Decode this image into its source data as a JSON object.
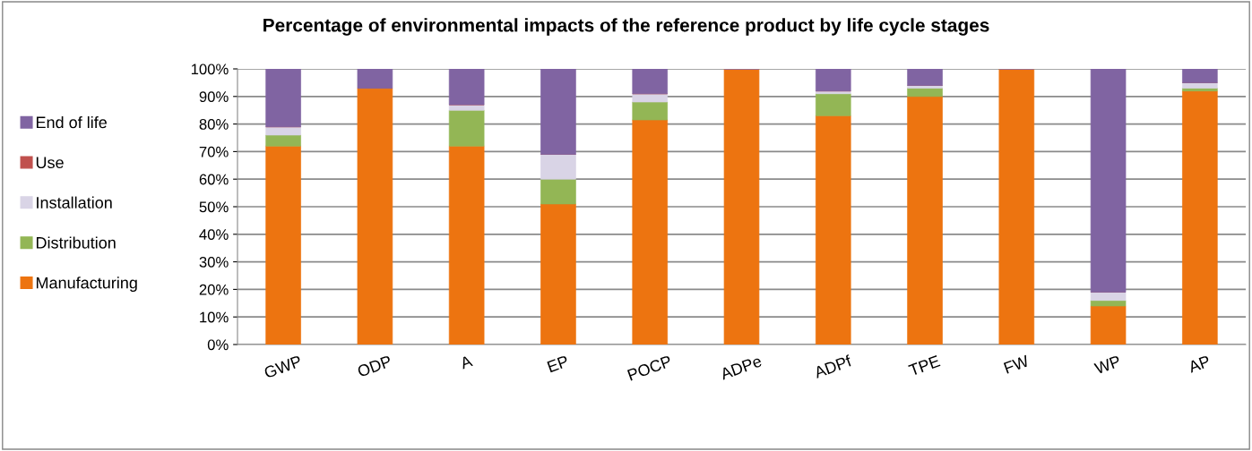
{
  "chart_data": {
    "type": "bar",
    "stacked": true,
    "title": "Percentage of environmental impacts of the reference product by life cycle stages",
    "categories": [
      "GWP",
      "ODP",
      "A",
      "EP",
      "POCP",
      "ADPe",
      "ADPf",
      "TPE",
      "FW",
      "WP",
      "AP"
    ],
    "series": [
      {
        "name": "Manufacturing",
        "color": "#ed7410",
        "values": [
          72,
          93,
          72,
          51,
          81.5,
          100,
          83,
          90,
          100,
          14,
          92
        ]
      },
      {
        "name": "Distribution",
        "color": "#93b655",
        "values": [
          4,
          0,
          13,
          9,
          6.5,
          0,
          8,
          3,
          0,
          2,
          1
        ]
      },
      {
        "name": "Installation",
        "color": "#d9d4e6",
        "values": [
          3,
          0,
          2,
          9,
          3,
          0,
          1,
          1,
          0,
          3,
          2
        ]
      },
      {
        "name": "Use",
        "color": "#c0504d",
        "values": [
          0,
          0,
          0,
          0,
          0,
          0,
          0,
          0,
          0,
          0,
          0
        ]
      },
      {
        "name": "End of life",
        "color": "#8064a2",
        "values": [
          21,
          7,
          13,
          31,
          9,
          0,
          8,
          6,
          0,
          81,
          5
        ]
      }
    ],
    "ylim": [
      0,
      100
    ],
    "yticks": [
      {
        "value": 0,
        "label": "0%"
      },
      {
        "value": 10,
        "label": "10%"
      },
      {
        "value": 20,
        "label": "20%"
      },
      {
        "value": 30,
        "label": "30%"
      },
      {
        "value": 40,
        "label": "40%"
      },
      {
        "value": 50,
        "label": "50%"
      },
      {
        "value": 60,
        "label": "60%"
      },
      {
        "value": 70,
        "label": "70%"
      },
      {
        "value": 80,
        "label": "80%"
      },
      {
        "value": 90,
        "label": "90%"
      },
      {
        "value": 100,
        "label": "100%"
      }
    ],
    "grid": "y",
    "legend": "left"
  }
}
